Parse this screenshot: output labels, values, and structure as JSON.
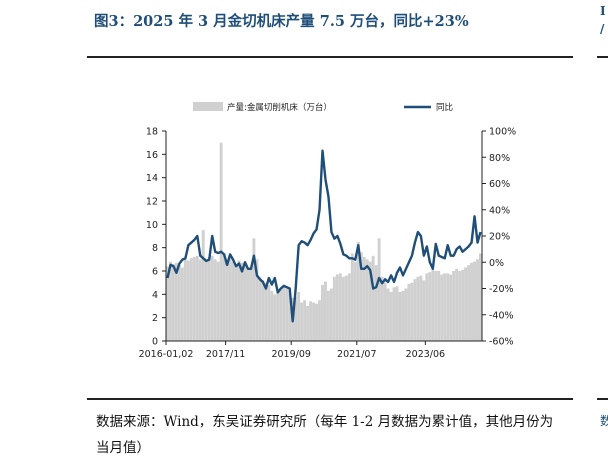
{
  "figure": {
    "title": "图3：2025 年 3 月金切机床产量 7.5 万台，同比+23%",
    "source_note": "数据来源：Wind，东吴证券研究所（每年 1-2 月数据为累计值，其他月份为当月值）",
    "edge_chars_top": [
      "I",
      "/"
    ],
    "edge_char_bottom": "数"
  },
  "colors": {
    "bar": "#d0d0d0",
    "line": "#1f4e79",
    "axis": "#222222"
  },
  "chart_data": {
    "type": "bar+line",
    "title": "",
    "legend": {
      "placement": "top",
      "items": [
        {
          "label": "产量:金属切削机床（万台）",
          "kind": "bar"
        },
        {
          "label": "同比",
          "kind": "line"
        }
      ]
    },
    "x_ticks": [
      {
        "label": "2016-01,02",
        "index": 0
      },
      {
        "label": "2017/11",
        "index": 20
      },
      {
        "label": "2019/09",
        "index": 42
      },
      {
        "label": "2021/07",
        "index": 64
      },
      {
        "label": "2023/06",
        "index": 87
      }
    ],
    "y_left": {
      "min": 0,
      "max": 18,
      "ticks": [
        "0",
        "2",
        "4",
        "6",
        "8",
        "10",
        "12",
        "14",
        "16",
        "18"
      ]
    },
    "y_right": {
      "min": -60,
      "max": 100,
      "ticks": [
        "-60%",
        "-40%",
        "-20%",
        "0%",
        "20%",
        "40%",
        "60%",
        "80%",
        "100%"
      ]
    },
    "series": [
      {
        "name": "产量:金属切削机床（万台）",
        "axis": "left",
        "kind": "bar",
        "values": [
          6.4,
          6.8,
          6.6,
          6.7,
          6.5,
          6.3,
          7.0,
          6.9,
          7.1,
          7.2,
          7.3,
          7.0,
          9.5,
          7.0,
          7.2,
          7.3,
          7.0,
          6.8,
          17.0,
          7.5,
          6.8,
          7.1,
          6.8,
          6.5,
          6.9,
          6.7,
          6.8,
          6.3,
          6.2,
          8.8,
          7.0,
          5.5,
          5.2,
          5.0,
          4.8,
          4.3,
          4.0,
          4.2,
          4.5,
          4.6,
          4.5,
          4.3,
          3.7,
          3.8,
          4.2,
          3.3,
          3.5,
          3.0,
          3.4,
          3.3,
          3.2,
          3.5,
          4.8,
          5.1,
          4.3,
          4.5,
          5.5,
          5.7,
          5.8,
          5.5,
          5.6,
          5.8,
          7.5,
          6.8,
          8.5,
          7.6,
          7.2,
          7.0,
          6.8,
          7.3,
          6.5,
          8.8,
          5.5,
          5.0,
          4.5,
          4.2,
          4.6,
          4.7,
          4.2,
          4.3,
          4.5,
          4.9,
          5.0,
          5.3,
          5.5,
          5.6,
          5.2,
          5.8,
          5.9,
          6.1,
          6.0,
          6.0,
          5.7,
          5.8,
          5.8,
          5.7,
          6.0,
          6.2,
          6.0,
          6.1,
          6.3,
          6.5,
          6.7,
          6.8,
          7.0,
          7.5
        ]
      },
      {
        "name": "同比",
        "axis": "right",
        "kind": "line",
        "values": [
          -12,
          -2,
          -3,
          -8,
          -1,
          2,
          3,
          13,
          15,
          17,
          20,
          5,
          3,
          1,
          2,
          20,
          8,
          7,
          8,
          6,
          -2,
          6,
          2,
          -3,
          -1,
          -7,
          0,
          -5,
          -5,
          5,
          -10,
          -13,
          -15,
          -20,
          -12,
          -17,
          -12,
          -23,
          -20,
          -18,
          -19,
          -20,
          -45,
          -20,
          13,
          16,
          15,
          13,
          17,
          22,
          25,
          40,
          85,
          63,
          50,
          23,
          18,
          20,
          14,
          6,
          5,
          3,
          3,
          2,
          13,
          -5,
          -5,
          -3,
          -6,
          -20,
          -19,
          -12,
          -16,
          -13,
          -15,
          -10,
          -15,
          -8,
          -4,
          -10,
          -5,
          0,
          5,
          15,
          23,
          20,
          5,
          12,
          0,
          -5,
          14,
          5,
          4,
          3,
          13,
          5,
          5,
          10,
          12,
          8,
          10,
          12,
          15,
          35,
          15,
          23
        ]
      }
    ]
  }
}
